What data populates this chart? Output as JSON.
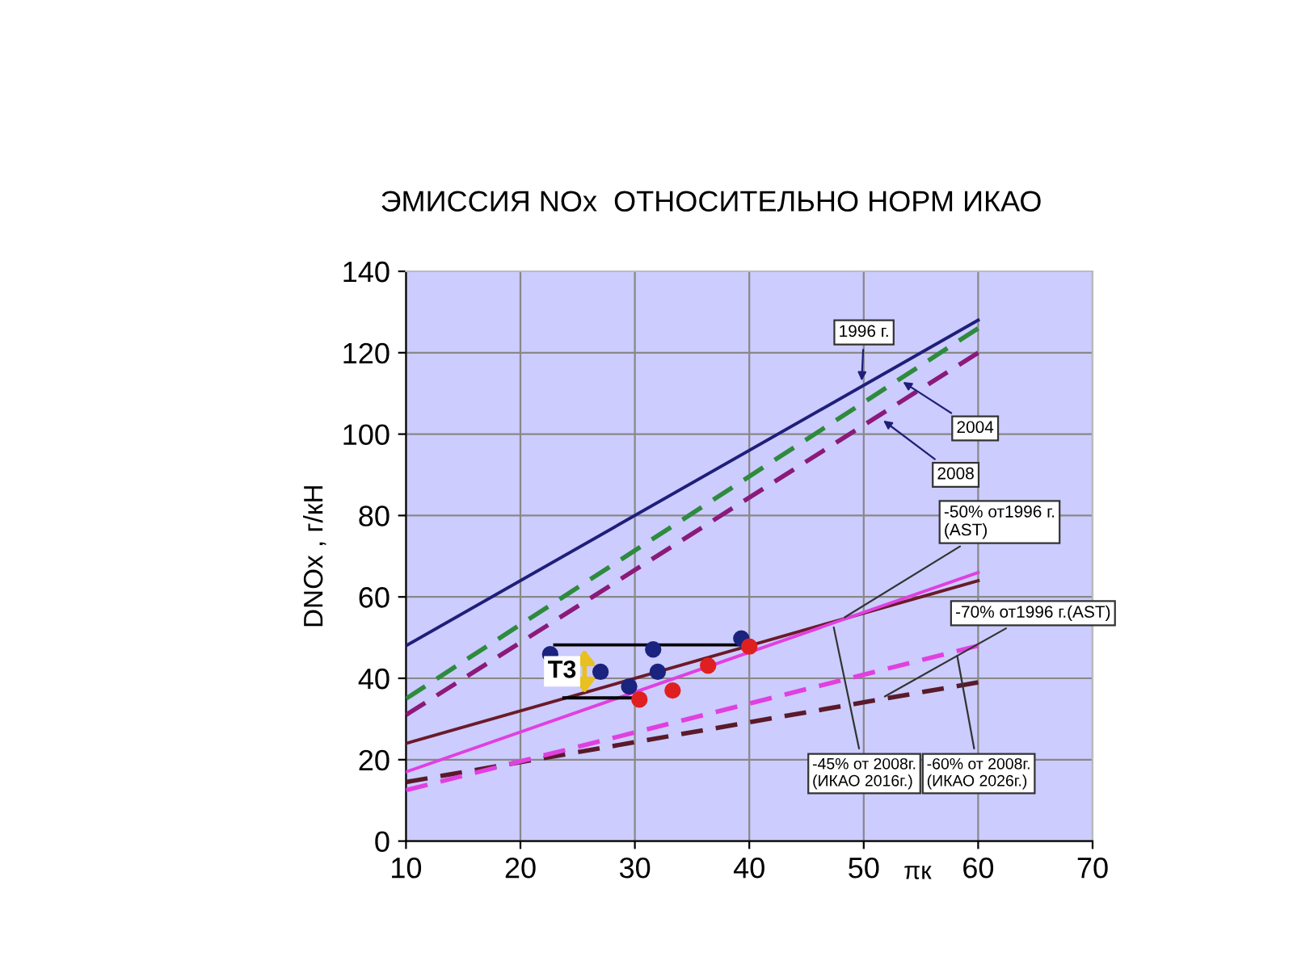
{
  "chart_data": {
    "type": "line",
    "title": "ЭМИССИЯ NOx  ОТНОСИТЕЛЬНО НОРМ ИКАО",
    "xlabel": "πк",
    "ylabel": "DNOx , г/кН",
    "xlim": [
      10,
      70
    ],
    "ylim": [
      0,
      140
    ],
    "xticks": [
      10,
      20,
      30,
      40,
      50,
      60,
      70
    ],
    "yticks": [
      0,
      20,
      40,
      60,
      80,
      100,
      120,
      140
    ],
    "grid": true,
    "legend": false,
    "series": [
      {
        "color": "#1f1f7a",
        "line_style": "solid",
        "x": [
          10,
          60
        ],
        "values": [
          48,
          128
        ]
      },
      {
        "color": "#2e8b3e",
        "line_style": "dashed",
        "x": [
          10,
          60
        ],
        "values": [
          35,
          126
        ]
      },
      {
        "color": "#8b1a7a",
        "line_style": "dashed",
        "x": [
          10,
          60
        ],
        "values": [
          31,
          120
        ]
      },
      {
        "color": "#6b1a2a",
        "line_style": "solid",
        "x": [
          10,
          60
        ],
        "values": [
          24,
          64
        ]
      },
      {
        "color": "#e040e0",
        "line_style": "solid",
        "x": [
          10,
          60
        ],
        "values": [
          17,
          66
        ]
      },
      {
        "color": "#5a1a2a",
        "line_style": "dashed",
        "x": [
          10,
          60
        ],
        "values": [
          14.5,
          39
        ]
      },
      {
        "color": "#e040e0",
        "line_style": "dashed",
        "x": [
          10,
          60
        ],
        "values": [
          12.5,
          48
        ]
      },
      {
        "color": "#000000",
        "line_style": "solid",
        "x": [
          23,
          40
        ],
        "values": [
          48.2,
          48.2
        ]
      },
      {
        "color": "#000000",
        "line_style": "solid",
        "x": [
          23.8,
          30
        ],
        "values": [
          35.2,
          35.2
        ]
      },
      {
        "type": "scatter",
        "color": "#1a237e",
        "marker": "circle",
        "x": [
          22.6,
          27.0,
          29.5,
          31.6,
          32.0,
          39.3
        ],
        "values": [
          45.9,
          41.6,
          38.0,
          47.1,
          41.6,
          49.8
        ]
      },
      {
        "type": "scatter",
        "color": "#e02020",
        "marker": "circle",
        "x": [
          30.4,
          33.3,
          36.4,
          40.0
        ],
        "values": [
          34.8,
          37.0,
          43.1,
          47.8
        ]
      }
    ],
    "annotations": [
      {
        "text": "1996 г.",
        "x": 49.8,
        "y": 112
      },
      {
        "text": "2004",
        "x": 53.1,
        "y": 113.4
      },
      {
        "text": "2008",
        "x": 51.4,
        "y": 104
      },
      {
        "text": "-50% от1996 г.\n(AST)",
        "x": 48,
        "y": 54.4
      },
      {
        "text": "-70% от1996 г.(AST)",
        "x": 51.5,
        "y": 35
      },
      {
        "text": "-45% от 2008г.\n(ИКАО 2016г.)",
        "x": 47.3,
        "y": 53.6
      },
      {
        "text": "-60% от 2008г.\n(ИКАО 2026г.)",
        "x": 58.1,
        "y": 46.6
      },
      "Т3"
    ]
  }
}
